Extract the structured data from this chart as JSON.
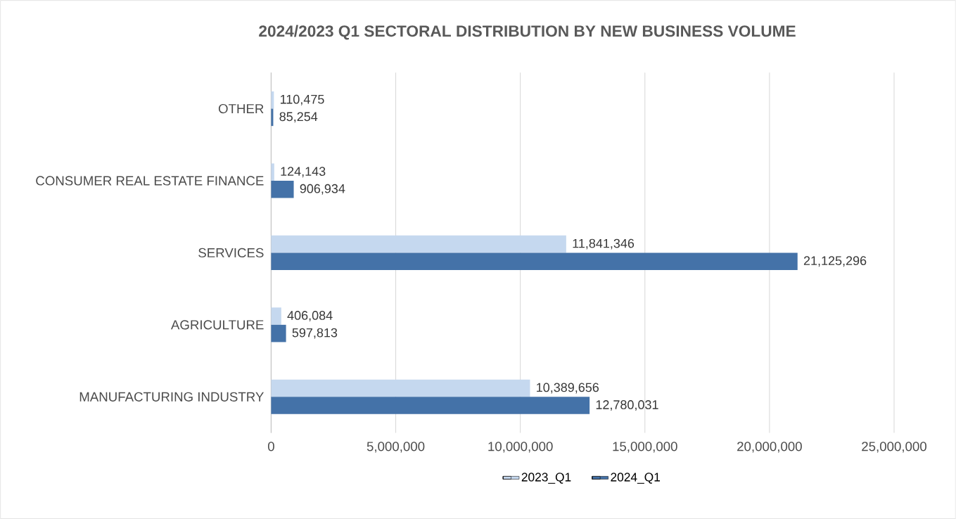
{
  "chart_data": {
    "type": "bar",
    "orientation": "horizontal",
    "title": "2024/2023 Q1 SECTORAL DISTRIBUTION BY NEW BUSINESS VOLUME",
    "categories": [
      "OTHER",
      "CONSUMER REAL ESTATE FINANCE",
      "SERVICES",
      "AGRICULTURE",
      "MANUFACTURING INDUSTRY"
    ],
    "series": [
      {
        "name": "2023_Q1",
        "color": "#c5d8ef",
        "values": [
          110475,
          124143,
          11841346,
          406084,
          10389656
        ],
        "value_labels": [
          "110,475",
          "124,143",
          "11,841,346",
          "406,084",
          "10,389,656"
        ]
      },
      {
        "name": "2024_Q1",
        "color": "#4472a8",
        "values": [
          85254,
          906934,
          21125296,
          597813,
          12780031
        ],
        "value_labels": [
          "85,254",
          "906,934",
          "21,125,296",
          "597,813",
          "12,780,031"
        ]
      }
    ],
    "xlim": [
      0,
      25000000
    ],
    "xticks": [
      0,
      {
        "value": 5000000,
        "label": "5,000,000"
      },
      {
        "value": 10000000,
        "label": "10,000,000"
      },
      {
        "value": 15000000,
        "label": "15,000,000"
      },
      {
        "value": 20000000,
        "label": "20,000,000"
      },
      {
        "value": 25000000,
        "label": "25,000,000"
      }
    ],
    "grid": "x",
    "legend": "bottom"
  }
}
